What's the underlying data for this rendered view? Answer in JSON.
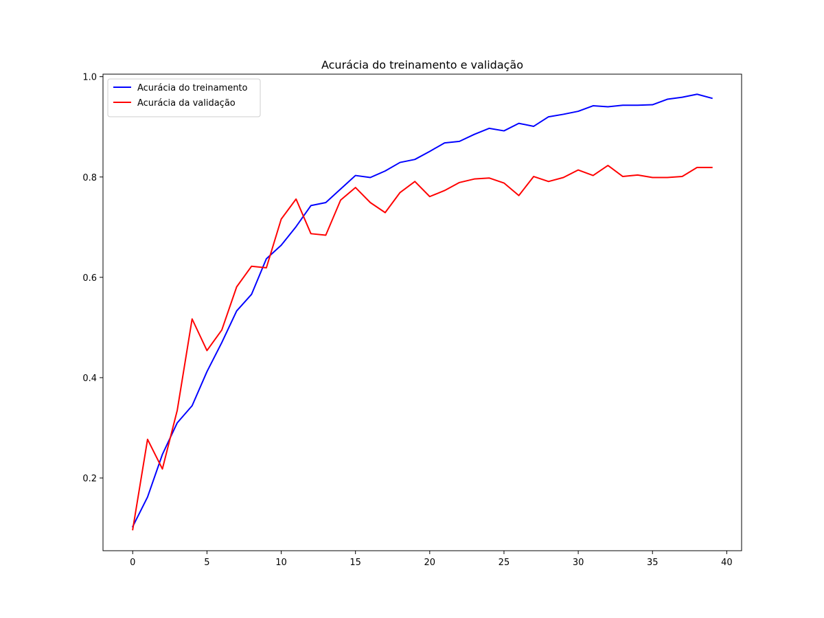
{
  "chart_data": {
    "type": "line",
    "title": "Acurácia do treinamento e validação",
    "xlabel": "",
    "ylabel": "",
    "xlim": [
      -2,
      41
    ],
    "ylim": [
      0.055,
      1.005
    ],
    "xticks": [
      0,
      5,
      10,
      15,
      20,
      25,
      30,
      35,
      40
    ],
    "xtick_labels": [
      "0",
      "5",
      "10",
      "15",
      "20",
      "25",
      "30",
      "35",
      "40"
    ],
    "yticks": [
      0.2,
      0.4,
      0.6,
      0.8,
      1.0
    ],
    "ytick_labels": [
      "0.2",
      "0.4",
      "0.6",
      "0.8",
      "1.0"
    ],
    "grid": false,
    "legend_position": "top-left",
    "x": [
      0,
      1,
      2,
      3,
      4,
      5,
      6,
      7,
      8,
      9,
      10,
      11,
      12,
      13,
      14,
      15,
      16,
      17,
      18,
      19,
      20,
      21,
      22,
      23,
      24,
      25,
      26,
      27,
      28,
      29,
      30,
      31,
      32,
      33,
      34,
      35,
      36,
      37,
      38,
      39
    ],
    "series": [
      {
        "name": "Acurácia do treinamento",
        "color": "#0000ff",
        "values": [
          0.103,
          0.162,
          0.247,
          0.31,
          0.344,
          0.412,
          0.47,
          0.533,
          0.566,
          0.637,
          0.664,
          0.701,
          0.743,
          0.749,
          0.776,
          0.803,
          0.799,
          0.812,
          0.829,
          0.835,
          0.851,
          0.868,
          0.871,
          0.885,
          0.897,
          0.892,
          0.907,
          0.901,
          0.92,
          0.925,
          0.931,
          0.942,
          0.94,
          0.943,
          0.943,
          0.944,
          0.955,
          0.959,
          0.965,
          0.957
        ]
      },
      {
        "name": "Acurácia da validação",
        "color": "#ff0000",
        "values": [
          0.097,
          0.277,
          0.218,
          0.335,
          0.517,
          0.454,
          0.495,
          0.581,
          0.622,
          0.619,
          0.716,
          0.756,
          0.687,
          0.684,
          0.754,
          0.779,
          0.749,
          0.729,
          0.769,
          0.791,
          0.761,
          0.773,
          0.789,
          0.796,
          0.798,
          0.788,
          0.763,
          0.801,
          0.791,
          0.799,
          0.814,
          0.803,
          0.823,
          0.801,
          0.804,
          0.799,
          0.799,
          0.801,
          0.819,
          0.819
        ]
      }
    ]
  }
}
